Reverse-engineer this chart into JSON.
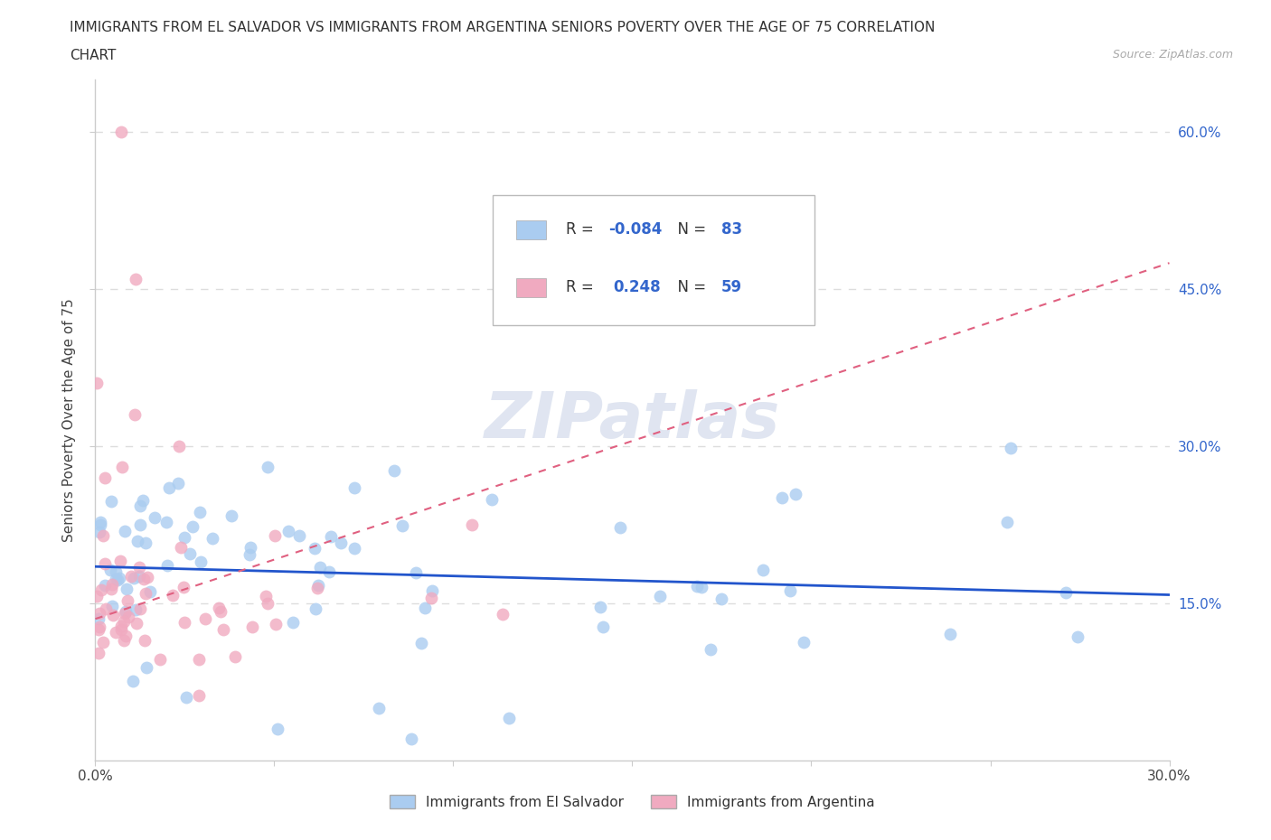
{
  "title_line1": "IMMIGRANTS FROM EL SALVADOR VS IMMIGRANTS FROM ARGENTINA SENIORS POVERTY OVER THE AGE OF 75 CORRELATION",
  "title_line2": "CHART",
  "source_text": "Source: ZipAtlas.com",
  "ylabel": "Seniors Poverty Over the Age of 75",
  "xmin": 0.0,
  "xmax": 0.3,
  "ymin": 0.0,
  "ymax": 0.65,
  "xtick_values": [
    0.0,
    0.05,
    0.1,
    0.15,
    0.2,
    0.25,
    0.3
  ],
  "ytick_values": [
    0.15,
    0.3,
    0.45,
    0.6
  ],
  "color_el_salvador": "#aaccf0",
  "color_argentina": "#f0aac0",
  "line_el_salvador": "#2255cc",
  "line_argentina": "#e06080",
  "r_el_salvador": "-0.084",
  "n_el_salvador": 83,
  "r_argentina": "0.248",
  "n_argentina": 59,
  "legend_label_el_salvador": "Immigrants from El Salvador",
  "legend_label_argentina": "Immigrants from Argentina",
  "watermark": "ZIPatlas",
  "grid_color": "#dddddd",
  "blue_text": "#3366cc",
  "es_line_y0": 0.185,
  "es_line_y1": 0.158,
  "ar_line_y0": 0.135,
  "ar_line_y1": 0.475
}
